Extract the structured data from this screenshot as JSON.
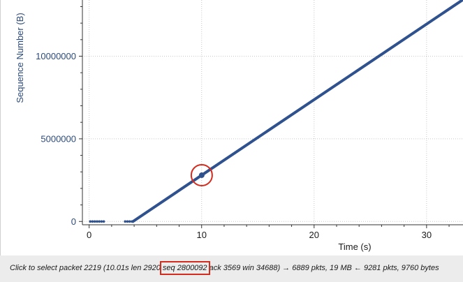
{
  "chart_data": {
    "type": "scatter",
    "xlabel": "Time (s)",
    "ylabel": "Sequence Number (B)",
    "x_ticks": [
      0,
      10,
      20,
      30
    ],
    "y_ticks": [
      0,
      5000000,
      10000000
    ],
    "y_tick_labels": [
      "0",
      "5000000",
      "10000000"
    ],
    "xlim": [
      -0.6,
      33.3
    ],
    "ylim": [
      -200000,
      13400000
    ],
    "grid": true,
    "series": [
      {
        "color": "#2f528f",
        "idle_x": [
          0.1,
          0.3,
          0.5,
          0.7,
          0.9,
          1.1,
          1.3,
          3.2,
          3.4,
          3.6,
          3.8
        ],
        "idle_y": [
          0,
          0,
          0,
          0,
          0,
          0,
          0,
          0,
          0,
          0,
          0
        ],
        "trend": [
          [
            3.9,
            0
          ],
          [
            10.01,
            2800092
          ],
          [
            33.3,
            13450000
          ]
        ]
      }
    ],
    "highlight": {
      "x": 10.01,
      "y": 2800092,
      "color": "#d42c1f"
    }
  },
  "status": {
    "before": "Click to select packet 2219 (10.01s len 2920 ",
    "highlight": "seq 2800092",
    "after": " ack 3569 win 34688) → 6889 pkts, 19 MB ← 9281 pkts, 9760 bytes"
  }
}
